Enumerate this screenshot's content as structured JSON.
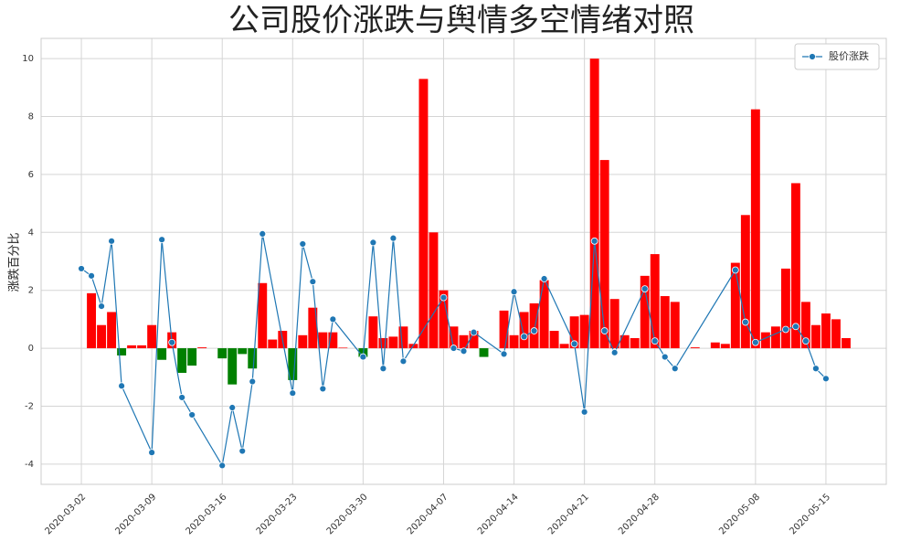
{
  "chart_data": {
    "type": "combo",
    "title": "公司股价涨跌与舆情多空情绪对照",
    "ylabel": "涨跌百分比",
    "xlim": [
      "2020-02-27",
      "2020-05-21"
    ],
    "ylim": [
      -4.7,
      10.7
    ],
    "xticks": [
      "2020-03-02",
      "2020-03-09",
      "2020-03-16",
      "2020-03-23",
      "2020-03-30",
      "2020-04-07",
      "2020-04-14",
      "2020-04-21",
      "2020-04-28",
      "2020-05-08",
      "2020-05-15"
    ],
    "yticks": [
      -4,
      -2,
      0,
      2,
      4,
      6,
      8,
      10
    ],
    "grid": true,
    "legend": "upper right",
    "series": [
      {
        "type": "bar",
        "positive_color": "#ff0000",
        "negative_color": "#008000",
        "x": [
          "2020-03-03",
          "2020-03-04",
          "2020-03-05",
          "2020-03-06",
          "2020-03-07",
          "2020-03-08",
          "2020-03-09",
          "2020-03-10",
          "2020-03-11",
          "2020-03-12",
          "2020-03-13",
          "2020-03-14",
          "2020-03-16",
          "2020-03-17",
          "2020-03-18",
          "2020-03-19",
          "2020-03-20",
          "2020-03-21",
          "2020-03-22",
          "2020-03-23",
          "2020-03-24",
          "2020-03-25",
          "2020-03-26",
          "2020-03-27",
          "2020-03-28",
          "2020-03-30",
          "2020-03-31",
          "2020-04-01",
          "2020-04-02",
          "2020-04-03",
          "2020-04-04",
          "2020-04-05",
          "2020-04-06",
          "2020-04-07",
          "2020-04-08",
          "2020-04-09",
          "2020-04-10",
          "2020-04-11",
          "2020-04-13",
          "2020-04-14",
          "2020-04-15",
          "2020-04-16",
          "2020-04-17",
          "2020-04-18",
          "2020-04-19",
          "2020-04-20",
          "2020-04-21",
          "2020-04-22",
          "2020-04-23",
          "2020-04-24",
          "2020-04-25",
          "2020-04-26",
          "2020-04-27",
          "2020-04-28",
          "2020-04-29",
          "2020-04-30",
          "2020-05-02",
          "2020-05-04",
          "2020-05-05",
          "2020-05-06",
          "2020-05-07",
          "2020-05-08",
          "2020-05-09",
          "2020-05-10",
          "2020-05-11",
          "2020-05-12",
          "2020-05-13",
          "2020-05-14",
          "2020-05-15",
          "2020-05-16",
          "2020-05-17"
        ],
        "values": [
          1.9,
          0.8,
          1.25,
          -0.25,
          0.1,
          0.1,
          0.8,
          -0.4,
          0.55,
          -0.85,
          -0.6,
          0.03,
          -0.35,
          -1.25,
          -0.2,
          -0.7,
          2.25,
          0.3,
          0.6,
          -1.1,
          0.45,
          1.4,
          0.55,
          0.55,
          0.02,
          -0.3,
          1.1,
          0.35,
          0.4,
          0.75,
          0.15,
          9.3,
          4.0,
          2.0,
          0.75,
          0.45,
          0.6,
          -0.3,
          1.3,
          0.45,
          1.25,
          1.55,
          2.35,
          0.6,
          0.15,
          1.1,
          1.15,
          10.0,
          6.5,
          1.7,
          0.45,
          0.35,
          2.5,
          3.25,
          1.8,
          1.6,
          0.03,
          0.2,
          0.15,
          2.95,
          4.6,
          8.25,
          0.55,
          0.75,
          2.75,
          5.7,
          1.6,
          0.8,
          1.2,
          1.0,
          0.35
        ]
      },
      {
        "type": "line",
        "name": "股价涨跌",
        "color": "#1f77b4",
        "x": [
          "2020-03-02",
          "2020-03-03",
          "2020-03-04",
          "2020-03-05",
          "2020-03-06",
          "2020-03-09",
          "2020-03-10",
          "2020-03-11",
          "2020-03-12",
          "2020-03-13",
          "2020-03-16",
          "2020-03-17",
          "2020-03-18",
          "2020-03-19",
          "2020-03-20",
          "2020-03-23",
          "2020-03-24",
          "2020-03-25",
          "2020-03-26",
          "2020-03-27",
          "2020-03-30",
          "2020-03-31",
          "2020-04-01",
          "2020-04-02",
          "2020-04-03",
          "2020-04-07",
          "2020-04-08",
          "2020-04-09",
          "2020-04-10",
          "2020-04-13",
          "2020-04-14",
          "2020-04-15",
          "2020-04-16",
          "2020-04-17",
          "2020-04-20",
          "2020-04-21",
          "2020-04-22",
          "2020-04-23",
          "2020-04-24",
          "2020-04-27",
          "2020-04-28",
          "2020-04-29",
          "2020-04-30",
          "2020-05-06",
          "2020-05-07",
          "2020-05-08",
          "2020-05-11",
          "2020-05-12",
          "2020-05-13",
          "2020-05-14",
          "2020-05-15"
        ],
        "values": [
          2.75,
          2.5,
          1.45,
          3.7,
          -1.3,
          -3.6,
          3.75,
          0.2,
          -1.7,
          -2.3,
          -4.05,
          -2.05,
          -3.55,
          -1.15,
          3.95,
          -1.55,
          3.6,
          2.3,
          -1.4,
          1.0,
          -0.3,
          3.65,
          -0.7,
          3.8,
          -0.45,
          1.75,
          0.0,
          -0.1,
          0.55,
          -0.2,
          1.95,
          0.4,
          0.6,
          2.4,
          0.15,
          -2.2,
          3.7,
          0.6,
          -0.15,
          2.05,
          0.25,
          -0.3,
          -0.7,
          2.7,
          0.9,
          0.2,
          0.65,
          0.75,
          0.25,
          -0.7,
          -1.05
        ]
      }
    ]
  }
}
